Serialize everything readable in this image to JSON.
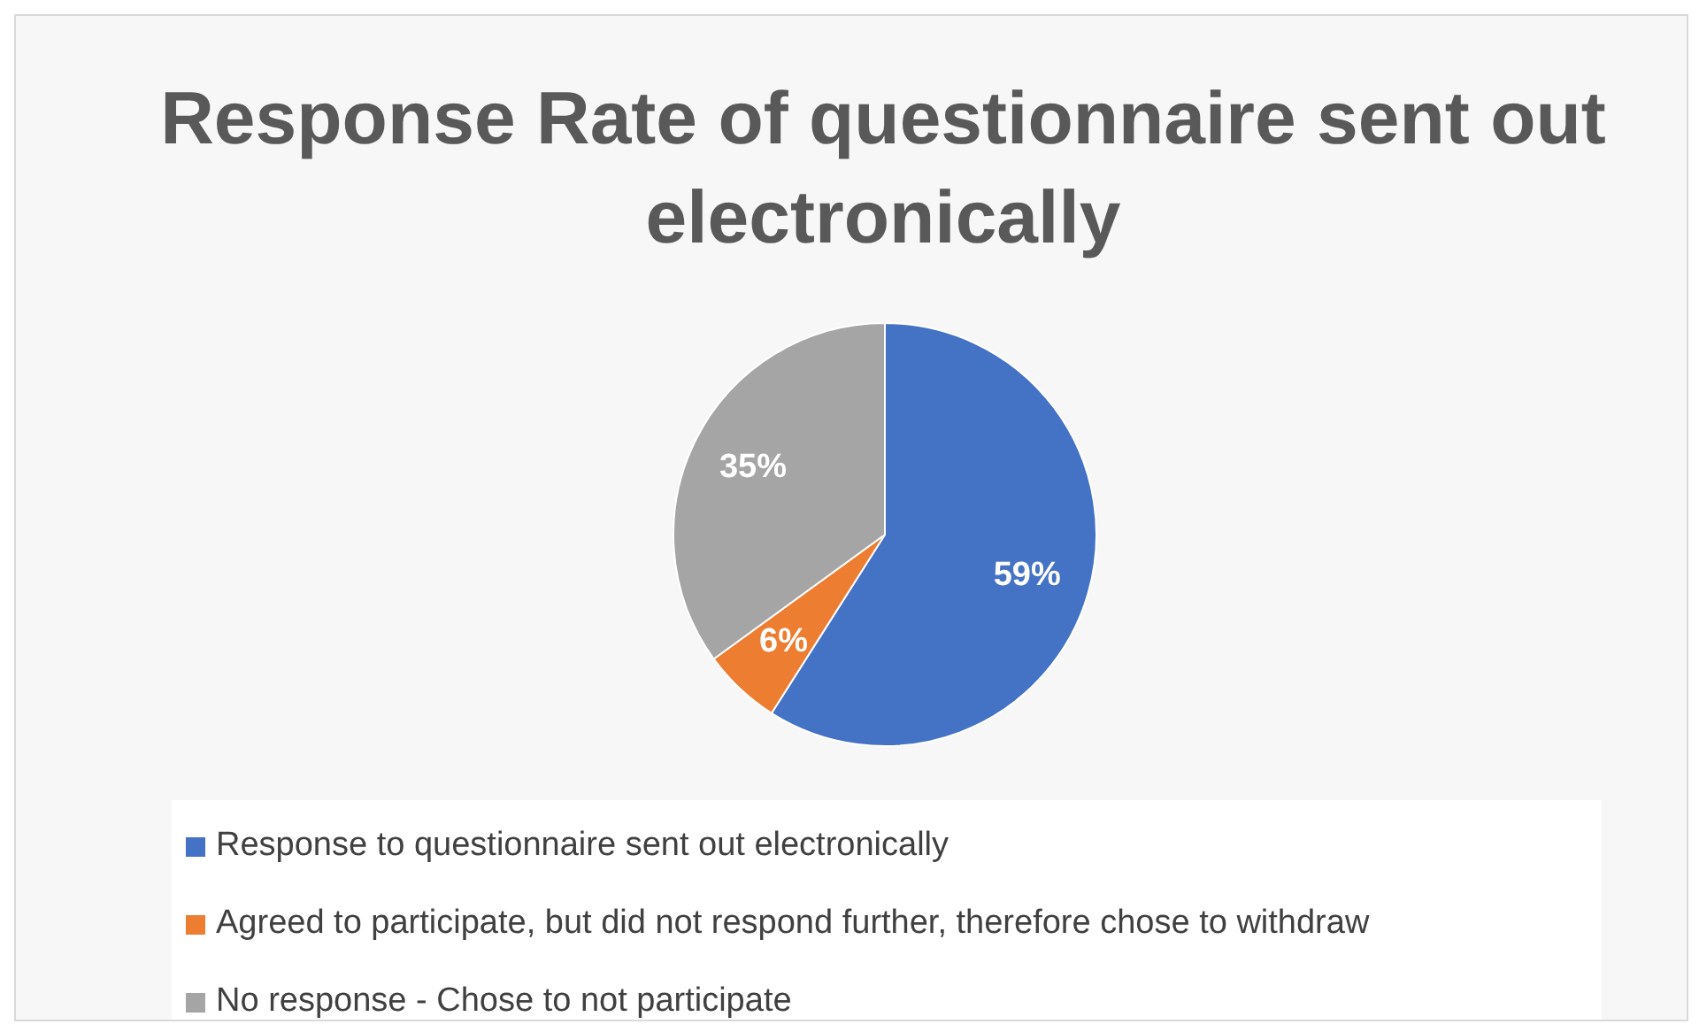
{
  "chart_data": {
    "type": "pie",
    "title": "Response Rate of questionnaire sent out electronically",
    "categories": [
      "Response to questionnaire sent out electronically",
      "Agreed to participate, but did not respond further, therefore chose to withdraw",
      "No response -  Chose to not participate"
    ],
    "values": [
      59,
      6,
      35
    ],
    "colors": [
      "#4472c4",
      "#ed7d31",
      "#a5a5a5"
    ],
    "value_labels": [
      "59%",
      "6%",
      "35%"
    ],
    "legend": "bottom"
  }
}
